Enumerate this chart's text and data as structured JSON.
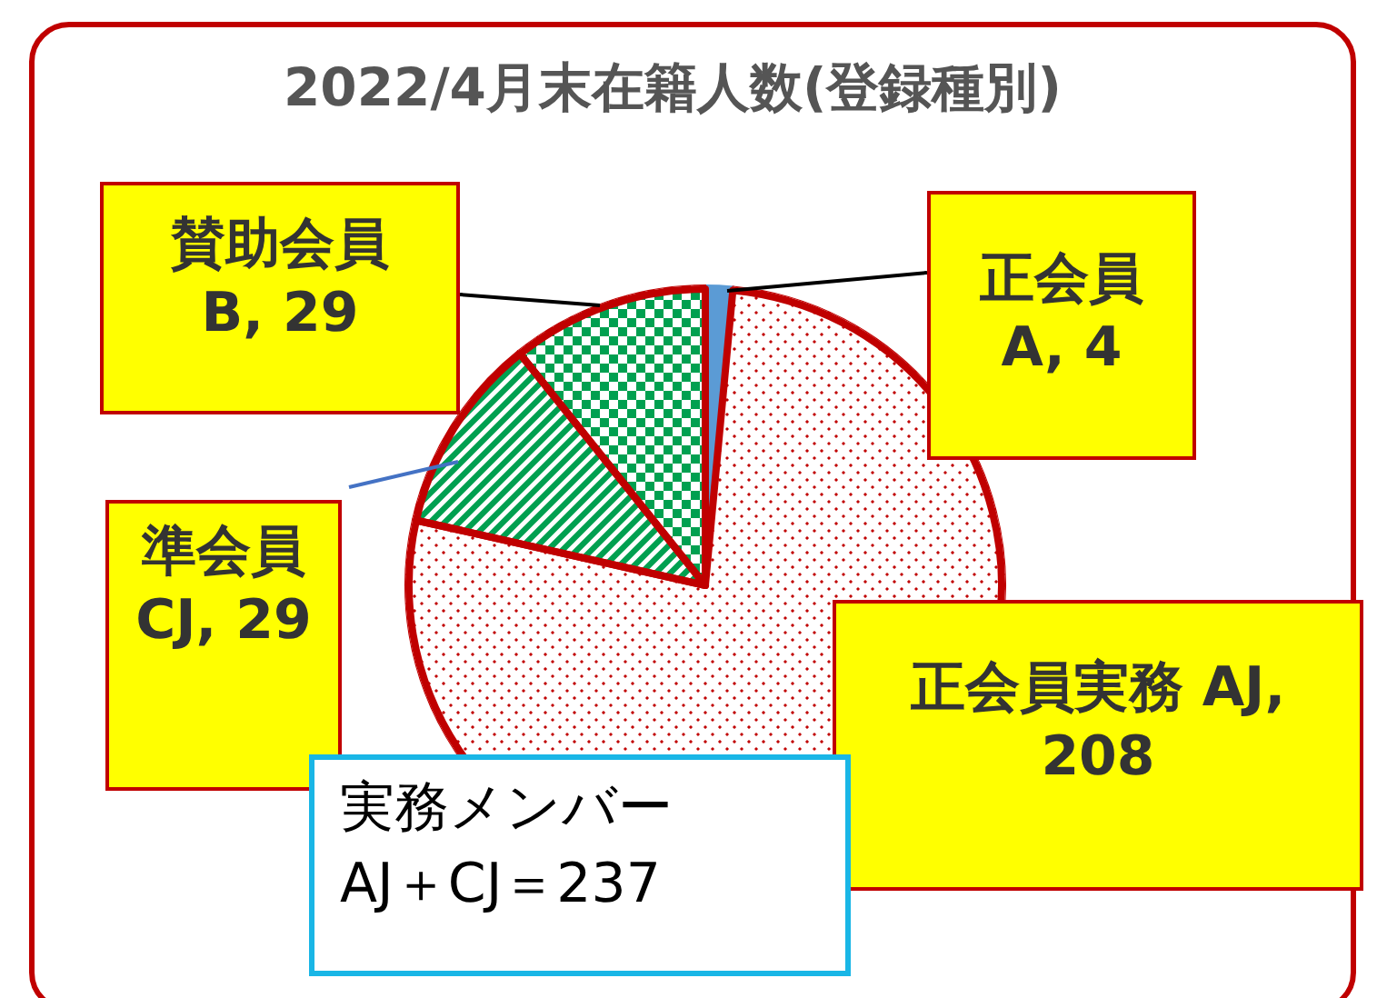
{
  "chart_data": {
    "type": "pie",
    "title": "2022/4月末在籍人数(登録種別)",
    "categories": [
      "正会員",
      "正会員実務",
      "準会員",
      "賛助会員"
    ],
    "values": [
      4,
      208,
      29,
      29
    ],
    "value_labels": [
      "A, 4",
      "AJ, 208",
      "CJ, 29",
      "B, 29"
    ],
    "colors": [
      "#5b9bd5",
      "#c00000",
      "#00a050",
      "#00a050"
    ],
    "legend": false,
    "annotations": [
      "実務メンバー\nAJ＋CJ＝237"
    ]
  }
}
